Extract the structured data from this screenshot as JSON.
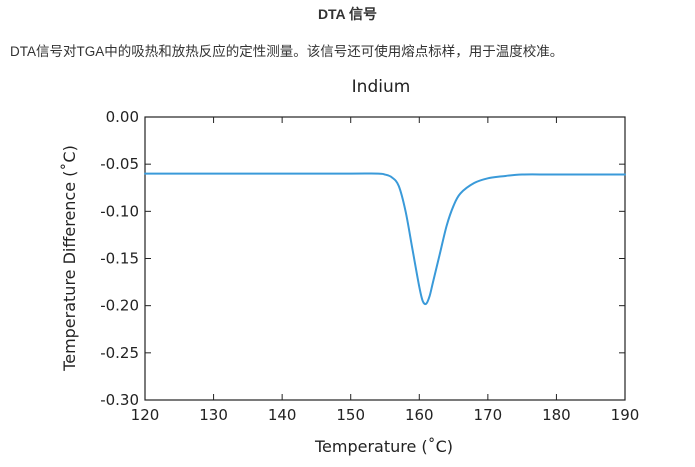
{
  "page": {
    "heading": "DTA 信号",
    "description": "DTA信号对TGA中的吸热和放热反应的定性测量。该信号还可使用熔点标样，用于温度校准。"
  },
  "chart_data": {
    "type": "line",
    "title": "Indium",
    "xlabel": "Temperature (˚C)",
    "ylabel": "Temperature Difference (˚C)",
    "xlim": [
      120,
      190
    ],
    "ylim": [
      -0.3,
      0.0
    ],
    "xticks": [
      120,
      130,
      140,
      150,
      160,
      170,
      180,
      190
    ],
    "xtick_labels": [
      "120",
      "130",
      "140",
      "150",
      "160",
      "170",
      "180",
      "190"
    ],
    "yticks": [
      0.0,
      -0.05,
      -0.1,
      -0.15,
      -0.2,
      -0.25,
      -0.3
    ],
    "ytick_labels": [
      "0.00",
      "-0.05",
      "-0.10",
      "-0.15",
      "-0.20",
      "-0.25",
      "-0.30"
    ],
    "grid": false,
    "series": [
      {
        "color": "#3a9ad9",
        "x": [
          120,
          130,
          140,
          150,
          154,
          155,
          156,
          157,
          158,
          159,
          160,
          160.5,
          161,
          161.5,
          162,
          163,
          164,
          165,
          166,
          168,
          170,
          172,
          175,
          180,
          190
        ],
        "y": [
          -0.06,
          -0.06,
          -0.06,
          -0.06,
          -0.06,
          -0.061,
          -0.064,
          -0.073,
          -0.1,
          -0.14,
          -0.18,
          -0.195,
          -0.198,
          -0.19,
          -0.175,
          -0.145,
          -0.115,
          -0.094,
          -0.081,
          -0.07,
          -0.065,
          -0.063,
          -0.061,
          -0.061,
          -0.061
        ]
      }
    ]
  }
}
